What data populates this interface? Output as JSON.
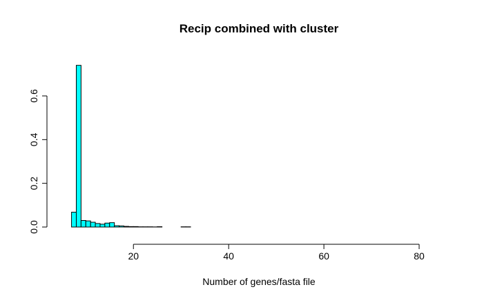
{
  "chart_data": {
    "type": "bar",
    "title": "Recip combined with cluster",
    "xlabel": "Number of genes/fasta file",
    "ylabel": "",
    "xlim": [
      3,
      90
    ],
    "ylim": [
      0,
      0.78
    ],
    "x_ticks": [
      20,
      40,
      60,
      80
    ],
    "x_tick_labels": [
      "20",
      "40",
      "60",
      "80"
    ],
    "y_ticks": [
      0.0,
      0.2,
      0.4,
      0.6
    ],
    "y_tick_labels": [
      "0.0",
      "0.2",
      "0.4",
      "0.6"
    ],
    "bar_color": "#00ffff",
    "bins": [
      {
        "x0": 7,
        "x1": 8,
        "value": 0.068
      },
      {
        "x0": 8,
        "x1": 9,
        "value": 0.74
      },
      {
        "x0": 9,
        "x1": 10,
        "value": 0.03
      },
      {
        "x0": 10,
        "x1": 11,
        "value": 0.028
      },
      {
        "x0": 11,
        "x1": 12,
        "value": 0.022
      },
      {
        "x0": 12,
        "x1": 13,
        "value": 0.016
      },
      {
        "x0": 13,
        "x1": 14,
        "value": 0.013
      },
      {
        "x0": 14,
        "x1": 15,
        "value": 0.018
      },
      {
        "x0": 15,
        "x1": 16,
        "value": 0.02
      },
      {
        "x0": 16,
        "x1": 17,
        "value": 0.006
      },
      {
        "x0": 17,
        "x1": 18,
        "value": 0.005
      },
      {
        "x0": 18,
        "x1": 19,
        "value": 0.003
      },
      {
        "x0": 19,
        "x1": 20,
        "value": 0.002
      },
      {
        "x0": 20,
        "x1": 21,
        "value": 0.002
      },
      {
        "x0": 21,
        "x1": 22,
        "value": 0.001
      },
      {
        "x0": 22,
        "x1": 23,
        "value": 0.001
      },
      {
        "x0": 23,
        "x1": 24,
        "value": 0.001
      },
      {
        "x0": 24,
        "x1": 25,
        "value": 0.0005
      },
      {
        "x0": 25,
        "x1": 26,
        "value": 0.0015
      },
      {
        "x0": 30,
        "x1": 31,
        "value": 0.001
      },
      {
        "x0": 31,
        "x1": 32,
        "value": 0.001
      },
      {
        "x0": 6,
        "x1": 90,
        "value": 0.0
      }
    ]
  }
}
